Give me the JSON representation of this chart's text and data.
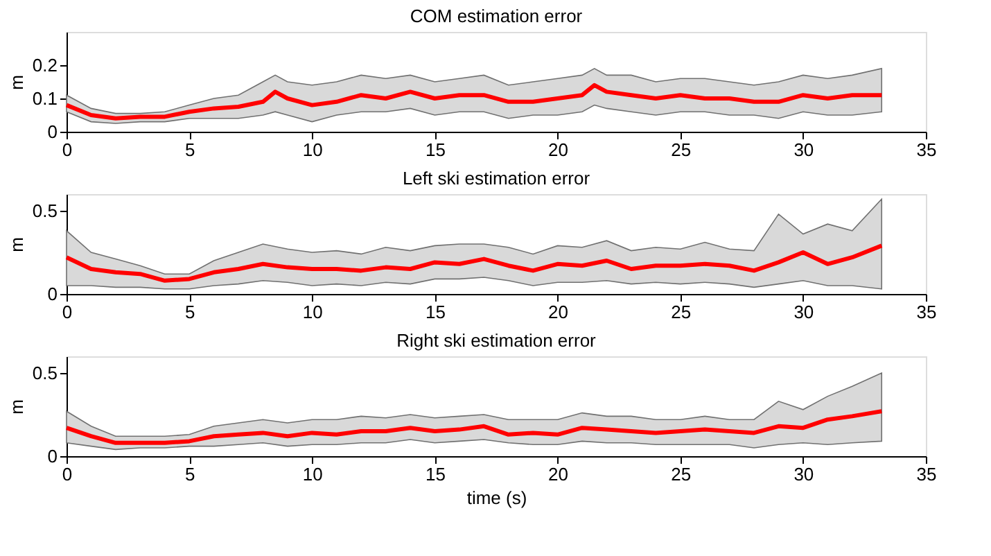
{
  "chart_data": [
    {
      "type": "line",
      "title": "COM estimation error",
      "ylabel": "m",
      "xlim": [
        0,
        35
      ],
      "xticks": [
        0,
        5,
        10,
        15,
        20,
        25,
        30,
        35
      ],
      "ylim": [
        0,
        0.3
      ],
      "yticks": [
        0,
        0.1,
        0.2
      ],
      "grid": false,
      "line_style": "solid",
      "x": [
        0,
        1,
        2,
        3,
        4,
        5,
        6,
        7,
        8,
        8.5,
        9,
        10,
        11,
        12,
        13,
        14,
        15,
        16,
        17,
        18,
        19,
        20,
        21,
        21.5,
        22,
        23,
        24,
        25,
        26,
        27,
        28,
        29,
        30,
        31,
        32,
        33.2
      ],
      "series": [
        {
          "color": "#ff0000",
          "values": [
            0.08,
            0.05,
            0.04,
            0.045,
            0.045,
            0.06,
            0.07,
            0.075,
            0.09,
            0.12,
            0.1,
            0.08,
            0.09,
            0.11,
            0.1,
            0.12,
            0.1,
            0.11,
            0.11,
            0.09,
            0.09,
            0.1,
            0.11,
            0.14,
            0.12,
            0.11,
            0.1,
            0.11,
            0.1,
            0.1,
            0.09,
            0.09,
            0.11,
            0.1,
            0.11,
            0.11
          ],
          "lower": [
            0.06,
            0.03,
            0.025,
            0.03,
            0.03,
            0.04,
            0.04,
            0.04,
            0.05,
            0.06,
            0.05,
            0.03,
            0.05,
            0.06,
            0.06,
            0.07,
            0.05,
            0.06,
            0.06,
            0.04,
            0.05,
            0.05,
            0.06,
            0.08,
            0.07,
            0.06,
            0.05,
            0.06,
            0.06,
            0.05,
            0.05,
            0.04,
            0.06,
            0.05,
            0.05,
            0.06
          ],
          "upper": [
            0.11,
            0.07,
            0.055,
            0.055,
            0.06,
            0.08,
            0.1,
            0.11,
            0.15,
            0.17,
            0.15,
            0.14,
            0.15,
            0.17,
            0.16,
            0.17,
            0.15,
            0.16,
            0.17,
            0.14,
            0.15,
            0.16,
            0.17,
            0.19,
            0.17,
            0.17,
            0.15,
            0.16,
            0.16,
            0.15,
            0.14,
            0.15,
            0.17,
            0.16,
            0.17,
            0.19
          ]
        }
      ]
    },
    {
      "type": "line",
      "title": "Left ski estimation error",
      "ylabel": "m",
      "xlim": [
        0,
        35
      ],
      "xticks": [
        0,
        5,
        10,
        15,
        20,
        25,
        30,
        35
      ],
      "ylim": [
        0,
        0.6
      ],
      "yticks": [
        0,
        0.5
      ],
      "grid": false,
      "line_style": "solid",
      "x": [
        0,
        1,
        2,
        3,
        4,
        5,
        6,
        7,
        8,
        9,
        10,
        11,
        12,
        13,
        14,
        15,
        16,
        17,
        18,
        19,
        20,
        21,
        22,
        23,
        24,
        25,
        26,
        27,
        28,
        29,
        30,
        31,
        32,
        33.2
      ],
      "series": [
        {
          "color": "#ff0000",
          "values": [
            0.22,
            0.15,
            0.13,
            0.12,
            0.08,
            0.09,
            0.13,
            0.15,
            0.18,
            0.16,
            0.15,
            0.15,
            0.14,
            0.16,
            0.15,
            0.19,
            0.18,
            0.21,
            0.17,
            0.14,
            0.18,
            0.17,
            0.2,
            0.15,
            0.17,
            0.17,
            0.18,
            0.17,
            0.14,
            0.19,
            0.25,
            0.18,
            0.22,
            0.29
          ],
          "lower": [
            0.05,
            0.05,
            0.04,
            0.04,
            0.03,
            0.03,
            0.05,
            0.06,
            0.08,
            0.07,
            0.05,
            0.06,
            0.05,
            0.07,
            0.06,
            0.09,
            0.09,
            0.1,
            0.08,
            0.05,
            0.07,
            0.07,
            0.08,
            0.06,
            0.07,
            0.06,
            0.07,
            0.06,
            0.04,
            0.06,
            0.08,
            0.05,
            0.05,
            0.03
          ],
          "upper": [
            0.38,
            0.25,
            0.21,
            0.17,
            0.12,
            0.12,
            0.2,
            0.25,
            0.3,
            0.27,
            0.25,
            0.26,
            0.24,
            0.28,
            0.26,
            0.29,
            0.3,
            0.3,
            0.28,
            0.24,
            0.29,
            0.28,
            0.32,
            0.26,
            0.28,
            0.27,
            0.31,
            0.27,
            0.26,
            0.48,
            0.36,
            0.42,
            0.38,
            0.57
          ]
        }
      ]
    },
    {
      "type": "line",
      "title": "Right ski estimation error",
      "xlabel": "time (s)",
      "ylabel": "m",
      "xlim": [
        0,
        35
      ],
      "xticks": [
        0,
        5,
        10,
        15,
        20,
        25,
        30,
        35
      ],
      "ylim": [
        0,
        0.6
      ],
      "yticks": [
        0,
        0.5
      ],
      "grid": false,
      "line_style": "solid",
      "x": [
        0,
        1,
        2,
        3,
        4,
        5,
        6,
        7,
        8,
        9,
        10,
        11,
        12,
        13,
        14,
        15,
        16,
        17,
        18,
        19,
        20,
        21,
        22,
        23,
        24,
        25,
        26,
        27,
        28,
        29,
        30,
        31,
        32,
        33.2
      ],
      "series": [
        {
          "color": "#ff0000",
          "values": [
            0.17,
            0.12,
            0.08,
            0.08,
            0.08,
            0.09,
            0.12,
            0.13,
            0.14,
            0.12,
            0.14,
            0.13,
            0.15,
            0.15,
            0.17,
            0.15,
            0.16,
            0.18,
            0.13,
            0.14,
            0.13,
            0.17,
            0.16,
            0.15,
            0.14,
            0.15,
            0.16,
            0.15,
            0.14,
            0.18,
            0.17,
            0.22,
            0.24,
            0.27
          ],
          "lower": [
            0.08,
            0.06,
            0.04,
            0.05,
            0.05,
            0.06,
            0.06,
            0.07,
            0.08,
            0.06,
            0.07,
            0.07,
            0.08,
            0.08,
            0.1,
            0.08,
            0.09,
            0.1,
            0.08,
            0.07,
            0.07,
            0.09,
            0.08,
            0.08,
            0.07,
            0.07,
            0.07,
            0.07,
            0.05,
            0.07,
            0.08,
            0.07,
            0.08,
            0.09
          ],
          "upper": [
            0.27,
            0.18,
            0.12,
            0.12,
            0.12,
            0.13,
            0.18,
            0.2,
            0.22,
            0.2,
            0.22,
            0.22,
            0.24,
            0.23,
            0.25,
            0.23,
            0.24,
            0.25,
            0.22,
            0.22,
            0.22,
            0.26,
            0.24,
            0.24,
            0.22,
            0.22,
            0.24,
            0.22,
            0.22,
            0.33,
            0.28,
            0.36,
            0.42,
            0.5
          ]
        }
      ]
    }
  ]
}
